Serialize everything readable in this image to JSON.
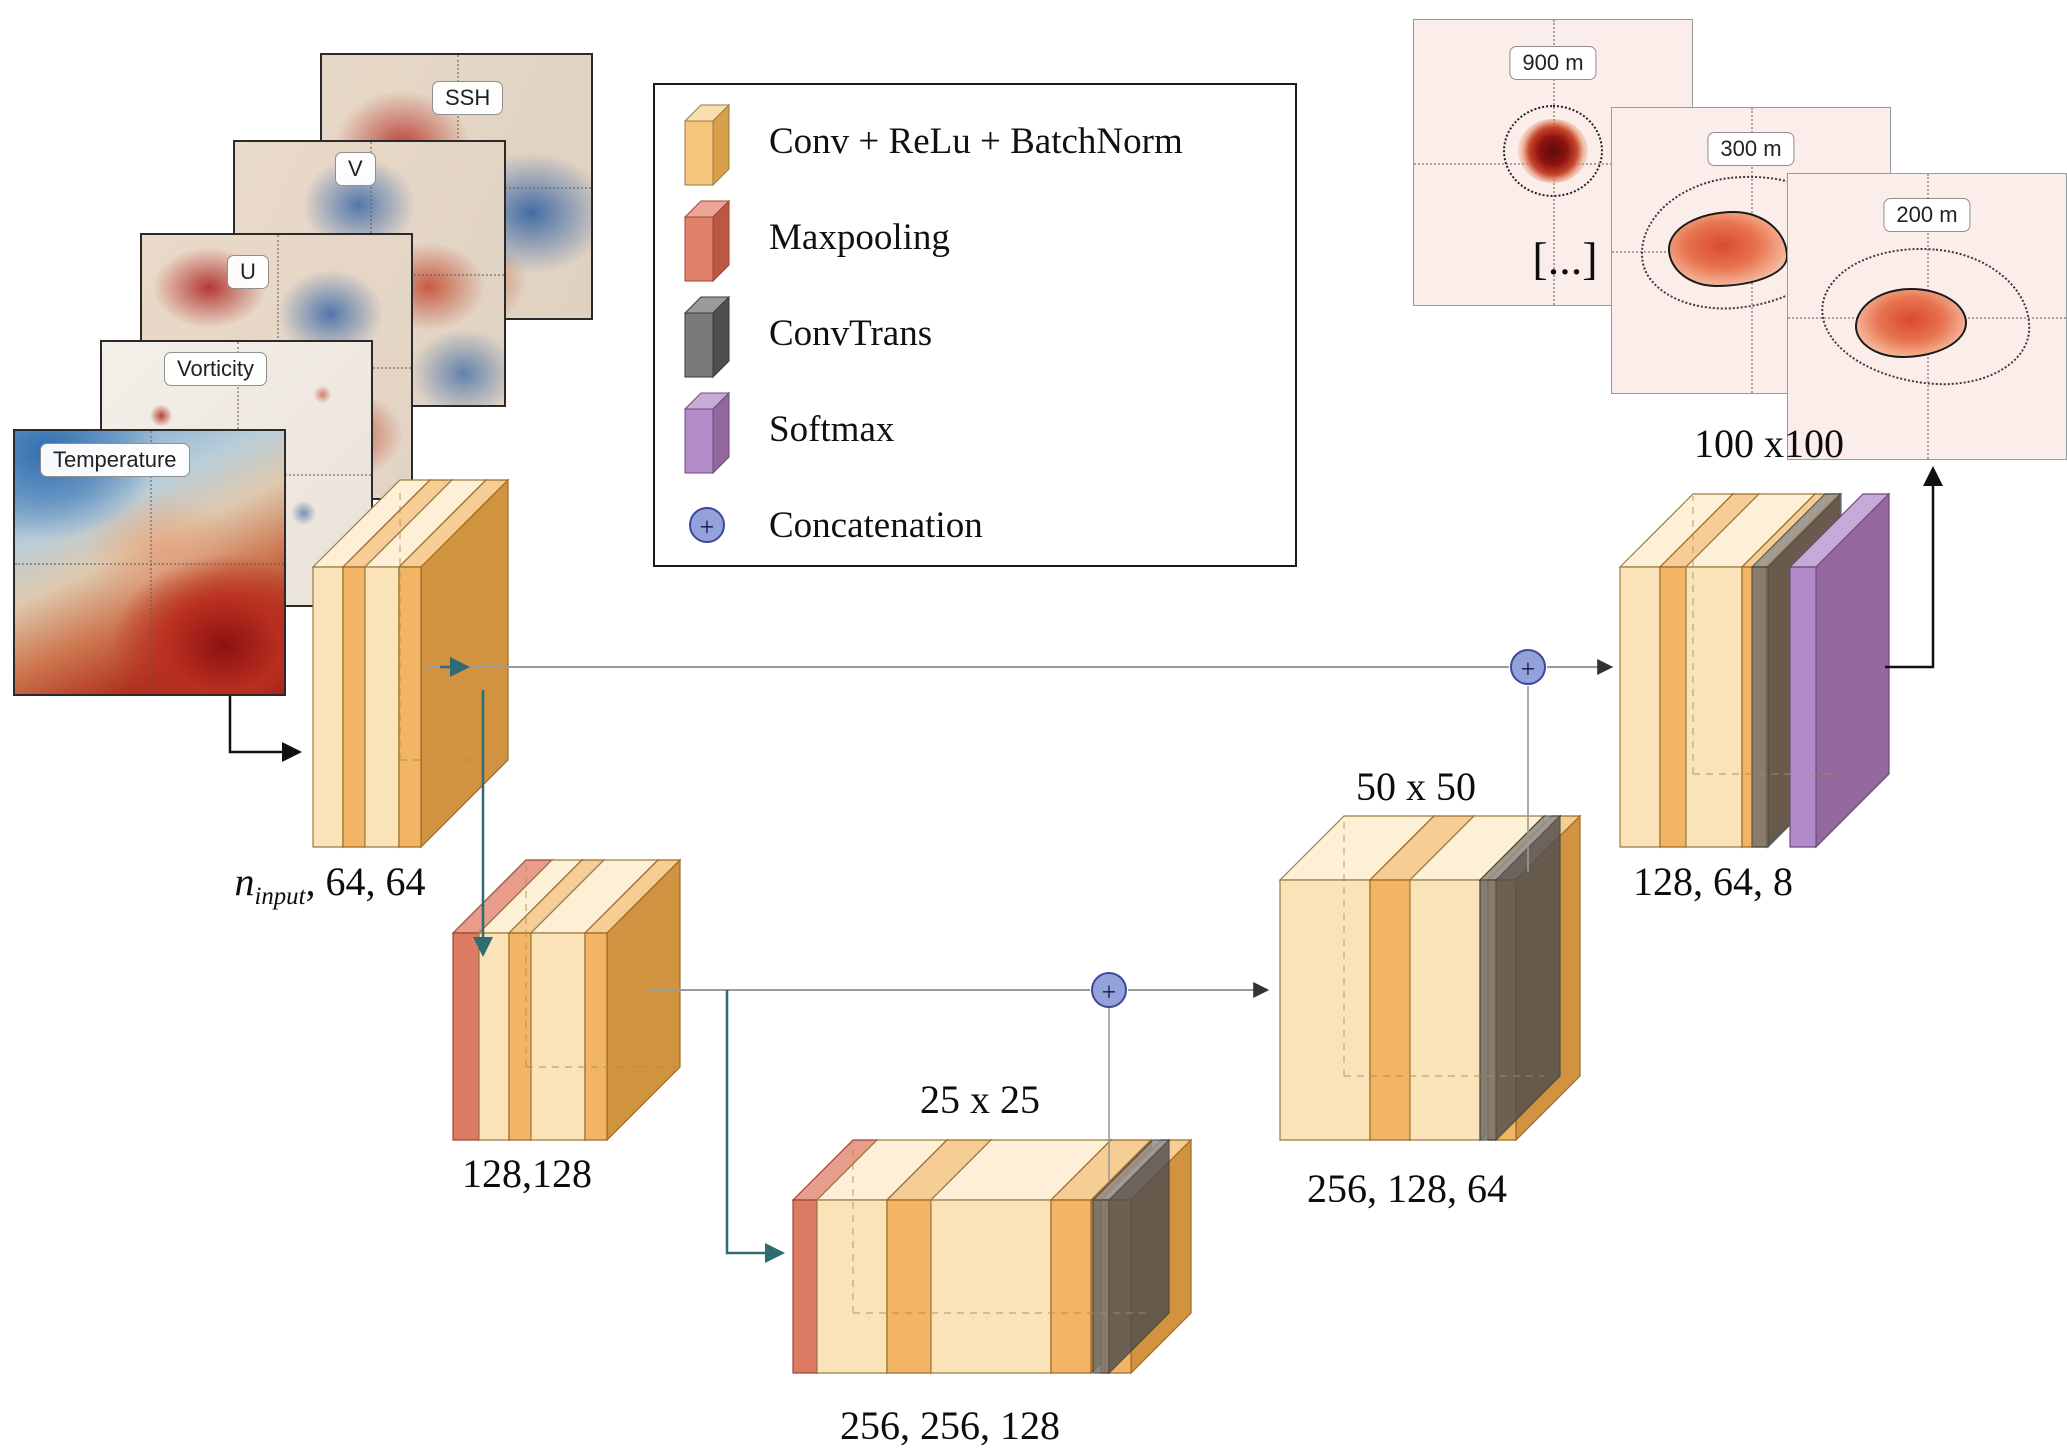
{
  "legend": {
    "items": [
      {
        "label": "Conv + ReLu + BatchNorm",
        "color": "#f6c57c"
      },
      {
        "label": "Maxpooling",
        "color": "#e0816b"
      },
      {
        "label": "ConvTrans",
        "color": "#7a7a7a"
      },
      {
        "label": "Softmax",
        "color": "#b48cc8"
      },
      {
        "label": "Concatenation",
        "color": "#93a2db",
        "symbol": "+"
      }
    ]
  },
  "inputs": {
    "labels": [
      "Temperature",
      "Vorticity",
      "U",
      "V",
      "SSH"
    ]
  },
  "outputs": {
    "depth_labels": [
      "900 m",
      "300 m",
      "200 m"
    ],
    "ellipsis": "[...]",
    "size_label": "100 x100"
  },
  "blocks": {
    "enc1": {
      "var": "n",
      "var_sub": "input",
      "suffix": ", 64, 64"
    },
    "enc2": {
      "label": "128,128"
    },
    "bottleneck": {
      "size_label": "25 x 25",
      "label": "256, 256, 128"
    },
    "dec1": {
      "size_label": "50 x 50",
      "label": "256, 128, 64"
    },
    "dec2": {
      "label": "128, 64, 8"
    }
  },
  "palette": {
    "conv": "#f6c57c",
    "maxpool": "#e0816b",
    "convtrans": "#7a7a7a",
    "softmax": "#b48cc8",
    "concat": "#93a2db",
    "skip_line": "#9a9a9a",
    "arrow": "#2e6b72"
  }
}
